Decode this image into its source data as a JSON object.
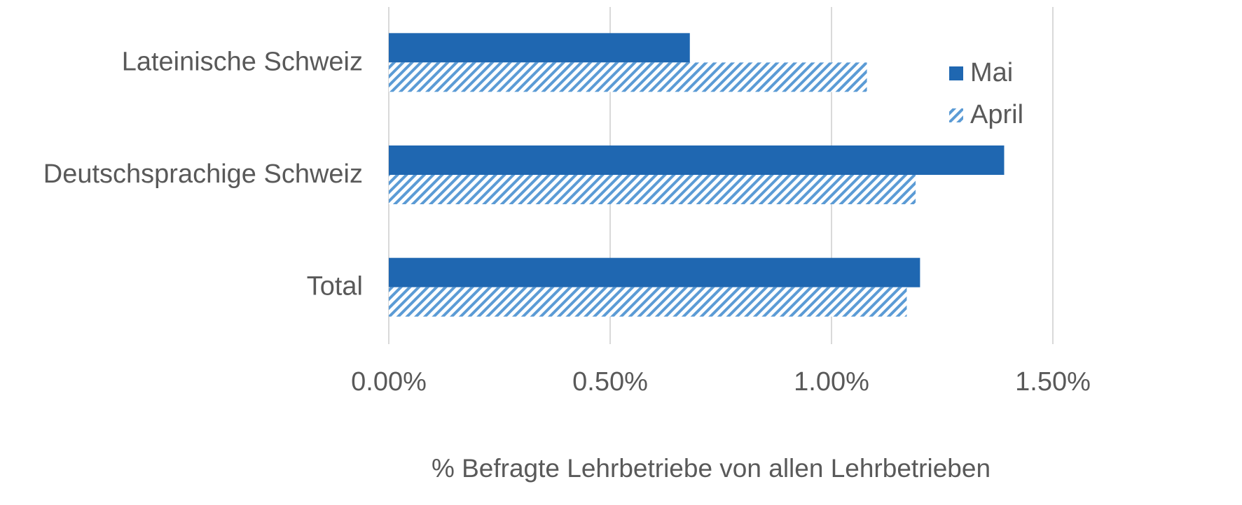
{
  "chart_data": {
    "type": "bar",
    "orientation": "horizontal",
    "categories": [
      "Lateinische Schweiz",
      "Deutschsprachige Schweiz",
      "Total"
    ],
    "series": [
      {
        "name": "Mai",
        "color": "#1f67b1",
        "pattern": "solid",
        "values": [
          0.68,
          1.39,
          1.2
        ]
      },
      {
        "name": "April",
        "color": "#5b9bd5",
        "pattern": "hatch",
        "values": [
          1.08,
          1.19,
          1.17
        ]
      }
    ],
    "xlim": [
      0,
      1.5
    ],
    "xticks": [
      {
        "value": 0,
        "label": "0.00%"
      },
      {
        "value": 0.5,
        "label": "0.50%"
      },
      {
        "value": 1,
        "label": "1.00%"
      },
      {
        "value": 1.5,
        "label": "1.50%"
      }
    ],
    "xlabel": "% Befragte Lehrbetriebe von allen Lehrbetrieben",
    "grid": true,
    "legend": "right"
  }
}
